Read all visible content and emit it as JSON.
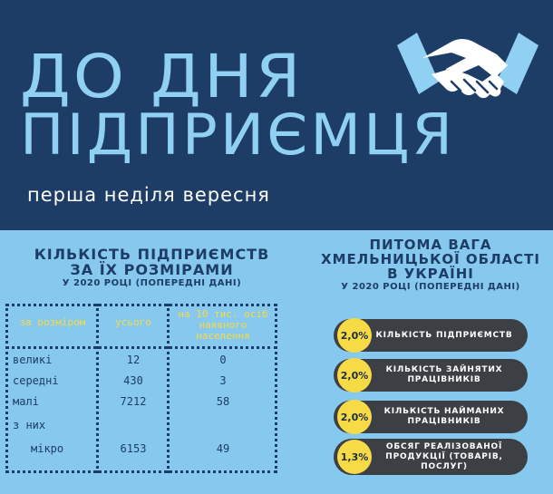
{
  "header": {
    "title_line1": "ДО ДНЯ",
    "title_line2": "ПІДПРИЄМЦЯ",
    "subtitle": "перша неділя вересня",
    "icon": "handshake-icon"
  },
  "left_section": {
    "title_line1": "КІЛЬКІСТЬ ПІДПРИЄМСТВ",
    "title_line2": "ЗА ЇХ РОЗМІРАМИ",
    "subtitle": "У 2020 РОЦІ (ПОПЕРЕДНІ ДАНІ)",
    "table": {
      "headers": [
        "за розміром",
        "усього",
        "на 10 тис. осіб наявного населення"
      ],
      "rows": [
        {
          "label": "великі",
          "total": "12",
          "per10k": "0"
        },
        {
          "label": "середні",
          "total": "430",
          "per10k": "3"
        },
        {
          "label": "малі",
          "total": "7212",
          "per10k": "58"
        },
        {
          "label": "з них",
          "total": "",
          "per10k": ""
        },
        {
          "label": "мікро",
          "total": "6153",
          "per10k": "49"
        }
      ]
    }
  },
  "right_section": {
    "title_line1": "ПИТОМА ВАГА",
    "title_line2": "ХМЕЛЬНИЦЬКОЇ ОБЛАСТІ",
    "title_line3": "В УКРАЇНІ",
    "subtitle": "У 2020 РОЦІ (ПОПЕРЕДНІ ДАНІ)",
    "items": [
      {
        "value": "2,0%",
        "label": "КІЛЬКІСТЬ ПІДПРИЄМСТВ"
      },
      {
        "value": "2,0%",
        "label": "КІЛЬКІСТЬ ЗАЙНЯТИХ ПРАЦІВНИКІВ"
      },
      {
        "value": "2,0%",
        "label": "КІЛЬКІСТЬ НАЙМАНИХ ПРАЦІВНИКІВ"
      },
      {
        "value": "1,3%",
        "label": "ОБСЯГ РЕАЛІЗОВАНОЇ ПРОДУКЦІЇ (ТОВАРІВ, ПОСЛУГ)"
      }
    ]
  },
  "colors": {
    "navy": "#1e3d66",
    "light_blue": "#86c8ee",
    "title_blue": "#8fd0f3",
    "yellow": "#f6da46",
    "pill_dark": "#3c3f44"
  }
}
